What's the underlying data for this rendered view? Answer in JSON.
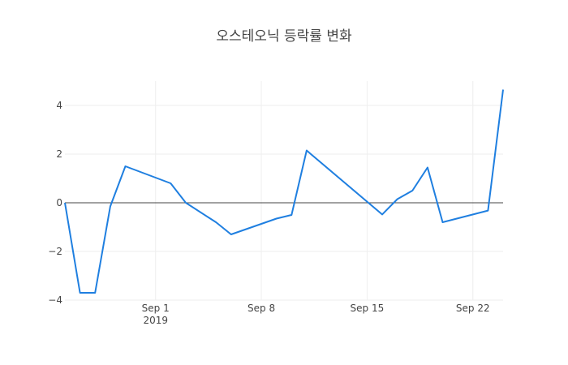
{
  "chart_data": {
    "type": "line",
    "title": "오스테오닉 등락률 변화",
    "xlabel": "",
    "ylabel": "",
    "x_range": [
      "2019-08-26",
      "2019-09-24"
    ],
    "ylim": [
      -4,
      5
    ],
    "grid": true,
    "legend": "none",
    "x_ticks": [
      {
        "date": "2019-09-01",
        "label": "Sep 1",
        "sublabel": "2019"
      },
      {
        "date": "2019-09-08",
        "label": "Sep 8",
        "sublabel": ""
      },
      {
        "date": "2019-09-15",
        "label": "Sep 15",
        "sublabel": ""
      },
      {
        "date": "2019-09-22",
        "label": "Sep 22",
        "sublabel": ""
      }
    ],
    "y_ticks": [
      {
        "value": 4,
        "label": "4"
      },
      {
        "value": 2,
        "label": "2"
      },
      {
        "value": 0,
        "label": "0"
      },
      {
        "value": -2,
        "label": "−2"
      },
      {
        "value": -4,
        "label": "−4"
      }
    ],
    "series": [
      {
        "color": "#1f7fe0",
        "points": [
          {
            "x": "2019-08-26",
            "y": 0.0
          },
          {
            "x": "2019-08-27",
            "y": -3.7
          },
          {
            "x": "2019-08-28",
            "y": -3.7
          },
          {
            "x": "2019-08-29",
            "y": -0.15
          },
          {
            "x": "2019-08-30",
            "y": 1.5
          },
          {
            "x": "2019-09-02",
            "y": 0.8
          },
          {
            "x": "2019-09-03",
            "y": 0.0
          },
          {
            "x": "2019-09-05",
            "y": -0.8
          },
          {
            "x": "2019-09-06",
            "y": -1.3
          },
          {
            "x": "2019-09-09",
            "y": -0.65
          },
          {
            "x": "2019-09-10",
            "y": -0.5
          },
          {
            "x": "2019-09-11",
            "y": 2.15
          },
          {
            "x": "2019-09-16",
            "y": -0.48
          },
          {
            "x": "2019-09-17",
            "y": 0.15
          },
          {
            "x": "2019-09-18",
            "y": 0.5
          },
          {
            "x": "2019-09-19",
            "y": 1.45
          },
          {
            "x": "2019-09-20",
            "y": -0.8
          },
          {
            "x": "2019-09-23",
            "y": -0.32
          },
          {
            "x": "2019-09-24",
            "y": 4.65
          }
        ]
      }
    ]
  }
}
